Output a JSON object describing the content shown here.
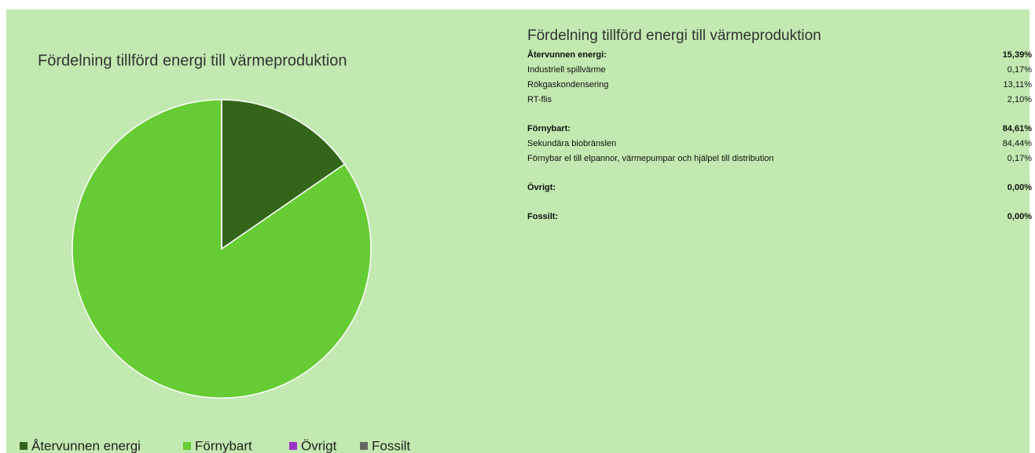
{
  "chart_data": {
    "type": "pie",
    "title": "Fördelning tillförd energi till värmeproduktion",
    "categories": [
      "Återvunnen energi",
      "Förnybart",
      "Övrigt",
      "Fossilt"
    ],
    "values": [
      15.39,
      84.61,
      0,
      0
    ],
    "colors": [
      "#336619",
      "#66cc33",
      "#9933cc",
      "#666666"
    ],
    "legend": "bottom"
  },
  "table": {
    "title": "Fördelning tillförd energi till värmeproduktion",
    "groups": [
      {
        "header": [
          "Återvunnen energi:",
          "15,39%"
        ],
        "rows": [
          [
            "Industriell spillvärme",
            "0,17%"
          ],
          [
            "Rökgaskondensering",
            "13,11%"
          ],
          [
            "RT-flis",
            "2,10%"
          ]
        ]
      },
      {
        "header": [
          "Förnybart:",
          "84,61%"
        ],
        "rows": [
          [
            "Sekundära biobränslen",
            "84,44%"
          ],
          [
            "Förnybar el till elpannor, värmepumpar och hjälpel till distribution",
            "0,17%"
          ]
        ]
      },
      {
        "header": [
          "Övrigt:",
          "0,00%"
        ],
        "rows": []
      },
      {
        "header": [
          "Fossilt:",
          "0,00%"
        ],
        "rows": []
      }
    ]
  }
}
